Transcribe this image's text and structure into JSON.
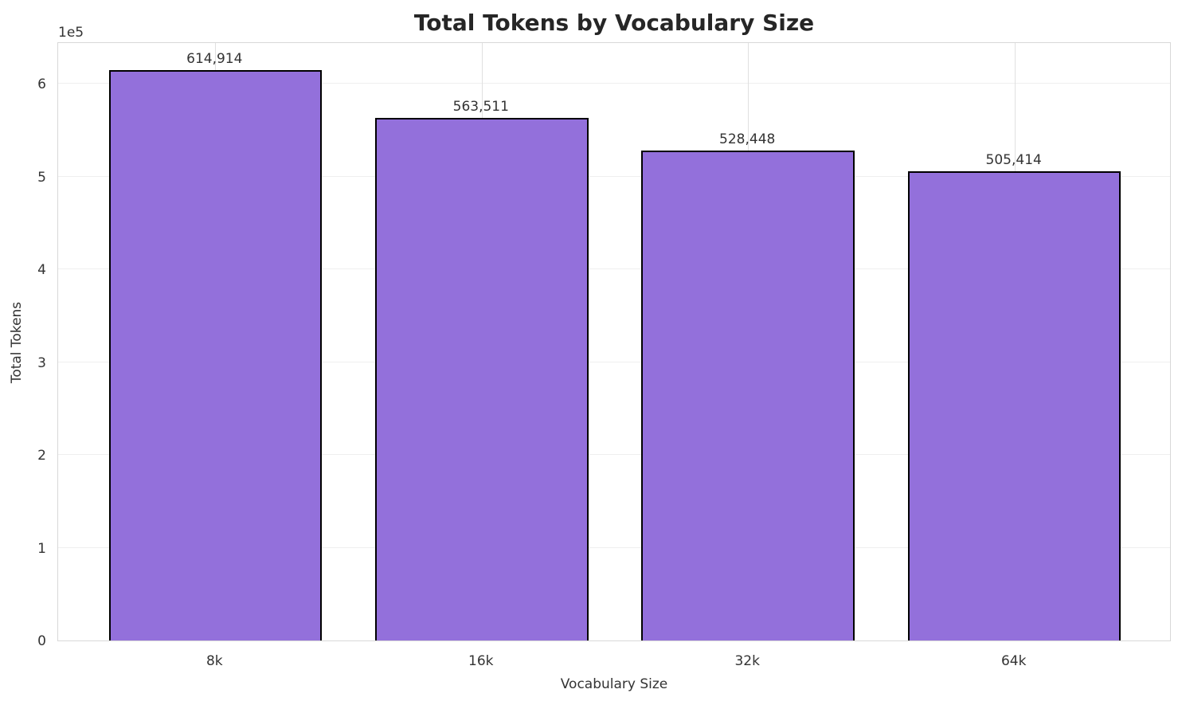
{
  "chart_data": {
    "type": "bar",
    "title": "Total Tokens by Vocabulary Size",
    "xlabel": "Vocabulary Size",
    "ylabel": "Total Tokens",
    "y_offset_label": "1e5",
    "categories": [
      "8k",
      "16k",
      "32k",
      "64k"
    ],
    "values": [
      614914,
      563511,
      528448,
      505414
    ],
    "value_labels": [
      "614,914",
      "563,511",
      "528,448",
      "505,414"
    ],
    "ylim": [
      0,
      645660
    ],
    "yticks": [
      0,
      1,
      2,
      3,
      4,
      5,
      6
    ],
    "ytick_scale": 100000,
    "grid": "both",
    "legend_position": "none",
    "colors": {
      "bar_fill": "#9370DB",
      "bar_edge": "#000000",
      "grid_horizontal": "#EFEFEF",
      "grid_vertical": "#E0E0E0",
      "spine": "#D8D8D8",
      "tick_text": "#333333",
      "title_text": "#262626"
    }
  }
}
